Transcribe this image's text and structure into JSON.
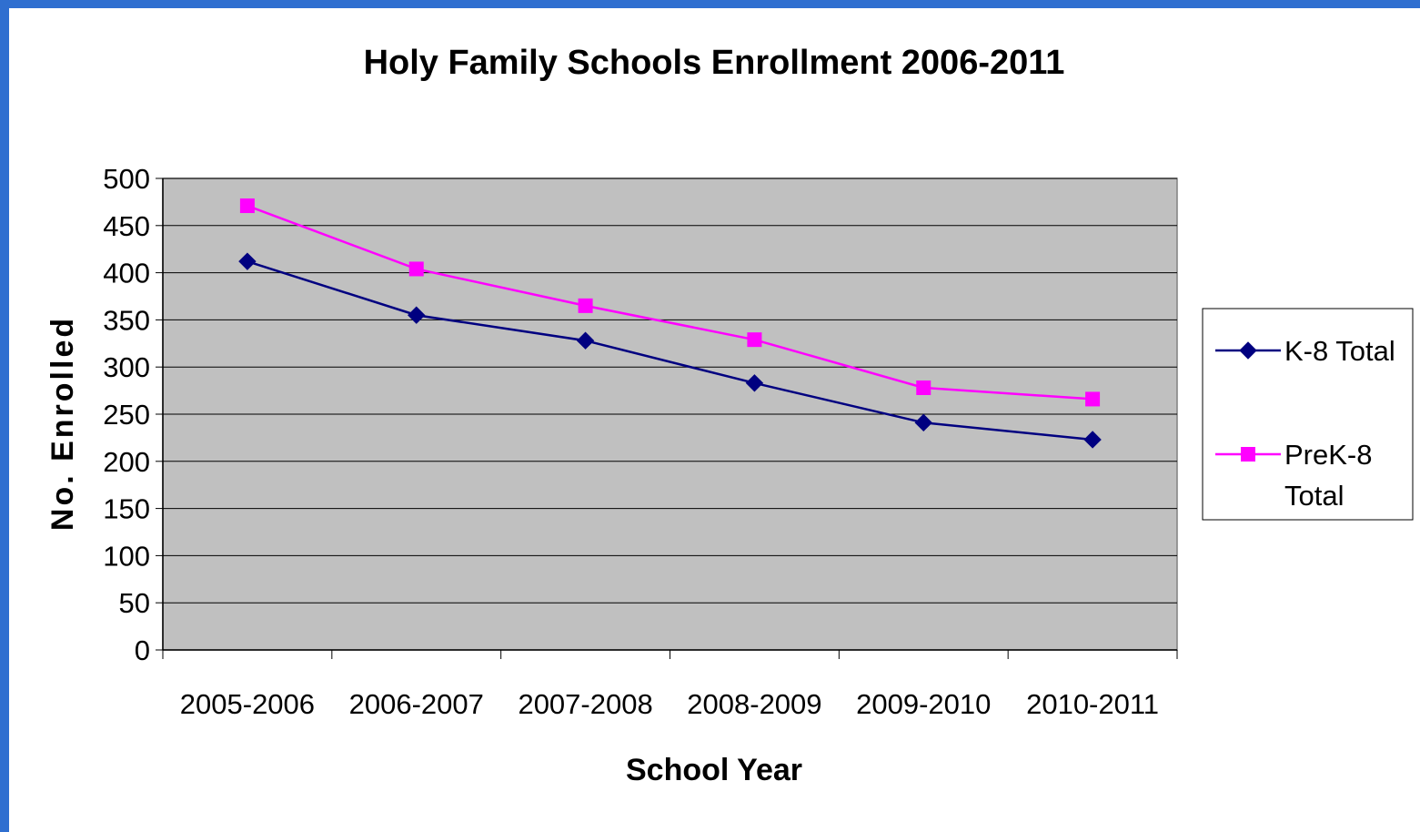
{
  "chart_data": {
    "type": "line",
    "title": "Holy Family Schools Enrollment 2006-2011",
    "xlabel": "School Year",
    "ylabel": "No. Enrolled",
    "ylim": [
      0,
      500
    ],
    "yticks": [
      "0",
      "50",
      "100",
      "150",
      "200",
      "250",
      "300",
      "350",
      "400",
      "450",
      "500"
    ],
    "categories": [
      "2005-2006",
      "2006-2007",
      "2007-2008",
      "2008-2009",
      "2009-2010",
      "2010-2011"
    ],
    "grid": true,
    "legend_position": "right",
    "series": [
      {
        "name": "K-8 Total",
        "color": "#000080",
        "marker": "diamond",
        "values": [
          412,
          355,
          328,
          283,
          241,
          223
        ]
      },
      {
        "name": "PreK-8 Total",
        "color": "#ff00ff",
        "marker": "square",
        "values": [
          471,
          404,
          365,
          329,
          278,
          266
        ]
      }
    ],
    "colors": {
      "plot_background": "#c0c0c0",
      "frame": "#2f6fd0"
    }
  }
}
